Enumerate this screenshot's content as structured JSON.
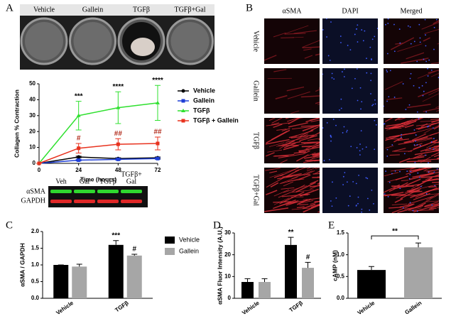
{
  "panels": {
    "a": "A",
    "b": "B",
    "c": "C",
    "d": "D",
    "e": "E"
  },
  "wells": [
    "Vehicle",
    "Gallein",
    "TGFβ",
    "TGFβ+Gal"
  ],
  "micrograph": {
    "columns": [
      "αSMA",
      "DAPI",
      "Merged"
    ],
    "rows": [
      "Vehicle",
      "Gallein",
      "TGFβ",
      "TGFβ+Gal"
    ]
  },
  "blot": {
    "lanes": [
      [
        "Veh"
      ],
      [
        "Gal"
      ],
      [
        "TGFβ"
      ],
      [
        "TGFβ+",
        "Gal"
      ]
    ],
    "bands": [
      "αSMA",
      "GAPDH"
    ]
  },
  "chart_data": [
    {
      "type": "line",
      "ylabel": "Collagen % Contraction",
      "xlabel": "Time (hours)",
      "x": [
        0,
        24,
        48,
        72
      ],
      "xlim": [
        0,
        72
      ],
      "xticks": [
        0,
        24,
        48,
        72
      ],
      "ylim": [
        0,
        50
      ],
      "yticks": [
        0,
        10,
        20,
        30,
        40,
        50
      ],
      "legend": "right",
      "series": [
        {
          "name": "Vehicle",
          "color": "#000000",
          "marker": "circle",
          "values": [
            0,
            4,
            3,
            3.5
          ],
          "errors": [
            0,
            0.5,
            0.5,
            0.5
          ]
        },
        {
          "name": "Gallein",
          "color": "#1f3fd6",
          "marker": "square",
          "values": [
            0,
            2,
            2.5,
            3
          ],
          "errors": [
            0,
            0.5,
            0.5,
            0.5
          ]
        },
        {
          "name": "TGFβ",
          "color": "#2fe02f",
          "marker": "triangle",
          "values": [
            0,
            30,
            35,
            38
          ],
          "errors": [
            0,
            9,
            10,
            11
          ],
          "significance": [
            null,
            "***",
            "****",
            "****"
          ]
        },
        {
          "name": "TGFβ + Gallein",
          "color": "#e8321e",
          "marker": "square",
          "values": [
            0,
            9.5,
            12,
            12.5
          ],
          "errors": [
            0,
            3,
            3.5,
            4
          ],
          "significance": [
            null,
            "#",
            "##",
            "##"
          ],
          "significance_color": "#b02a1a"
        }
      ]
    },
    {
      "type": "bar",
      "ylabel": "αSMA / GAPDH",
      "categories": [
        "Vehicle",
        "TGFβ"
      ],
      "legend": "right",
      "ylim": [
        0,
        2
      ],
      "yticks": [
        {
          "value": 0,
          "label": "0.0"
        },
        0.5,
        {
          "value": 1,
          "label": "1.0"
        },
        1.5,
        {
          "value": 2,
          "label": "2.0"
        }
      ],
      "series": [
        {
          "name": "Vehicle",
          "color": "#000000",
          "values": [
            1.0,
            1.6
          ],
          "errors": [
            0,
            0.13
          ],
          "significance": [
            null,
            "***"
          ]
        },
        {
          "name": "Gallein",
          "color": "#a6a6a6",
          "values": [
            0.95,
            1.28
          ],
          "errors": [
            0.07,
            0.04
          ],
          "significance": [
            null,
            "#"
          ]
        }
      ]
    },
    {
      "type": "bar",
      "ylabel": "αSMA Fluor Intensity (A.U.)",
      "categories": [
        "Vehicle",
        "TGFβ"
      ],
      "ylim": [
        0,
        30
      ],
      "yticks": [
        0,
        10,
        20,
        30
      ],
      "series": [
        {
          "color": "#000000",
          "values": [
            7.5,
            24.5
          ],
          "errors": [
            1.5,
            3.5
          ],
          "significance": [
            null,
            "**"
          ]
        },
        {
          "color": "#a6a6a6",
          "values": [
            7.5,
            14
          ],
          "errors": [
            1.5,
            2.5
          ],
          "significance": [
            null,
            "#"
          ]
        }
      ]
    },
    {
      "type": "bar",
      "ylabel": "cAMP (nM)",
      "categories": [
        "Vehicle",
        "Gallein"
      ],
      "values": [
        0.65,
        1.17
      ],
      "errors": [
        0.08,
        0.1
      ],
      "colors": [
        "#000000",
        "#a6a6a6"
      ],
      "significance": "**",
      "ylim": [
        0,
        1.5
      ],
      "yticks": [
        {
          "value": 0,
          "label": "0.0"
        },
        0.5,
        {
          "value": 1,
          "label": "1.0"
        },
        1.5
      ]
    }
  ]
}
